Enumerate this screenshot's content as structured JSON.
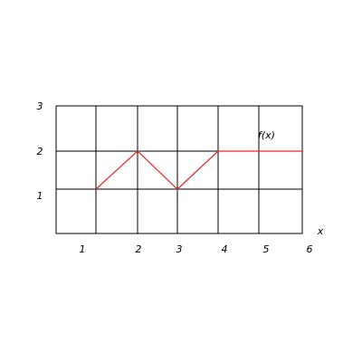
{
  "chart_data": {
    "type": "line",
    "xlabel": "x",
    "ylabel": "",
    "xlim": [
      0,
      6
    ],
    "ylim": [
      0,
      3
    ],
    "x_ticks": [
      "1",
      "2",
      "3",
      "4",
      "5",
      "6"
    ],
    "y_ticks": [
      "1",
      "2",
      "3"
    ],
    "grid": true,
    "series": [
      {
        "name": "f(x)",
        "color": "#e8262a",
        "x": [
          1,
          2,
          3,
          4,
          5,
          6
        ],
        "y": [
          1,
          2,
          1,
          2,
          2,
          2
        ]
      }
    ]
  }
}
